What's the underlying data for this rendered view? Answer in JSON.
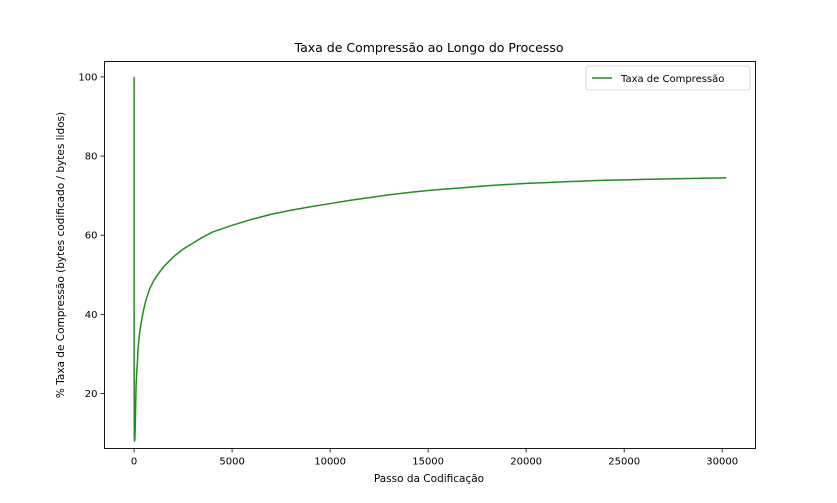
{
  "chart_data": {
    "type": "line",
    "title": "Taxa de Compressão ao Longo do Processo",
    "xlabel": "Passo da Codificação",
    "ylabel": "% Taxa de Compressão (bytes codificado / bytes lidos)",
    "xlim": [
      -1510,
      31700
    ],
    "ylim": [
      6.1,
      103.9
    ],
    "xticks": [
      0,
      5000,
      10000,
      15000,
      20000,
      25000,
      30000
    ],
    "xtick_labels": [
      "0",
      "5000",
      "10000",
      "15000",
      "20000",
      "25000",
      "30000"
    ],
    "yticks": [
      20,
      40,
      60,
      80,
      100
    ],
    "ytick_labels": [
      "20",
      "40",
      "60",
      "80",
      "100"
    ],
    "grid": false,
    "legend_position": "top-right",
    "series": [
      {
        "name": "Taxa de Compressão",
        "color": "#228b22",
        "x": [
          0,
          1,
          3,
          5,
          10,
          20,
          40,
          60,
          80,
          100,
          130,
          170,
          200,
          250,
          300,
          400,
          500,
          600,
          700,
          800,
          1000,
          1200,
          1500,
          1800,
          2000,
          2500,
          3000,
          3500,
          4000,
          5000,
          6000,
          7000,
          8000,
          9000,
          10000,
          11000,
          12000,
          13000,
          14000,
          15000,
          16000,
          17000,
          18000,
          19000,
          20000,
          21000,
          22000,
          23000,
          24000,
          25000,
          26000,
          27000,
          28000,
          29000,
          30200
        ],
        "y": [
          100,
          55,
          30,
          18,
          10,
          8,
          8.5,
          12,
          17,
          22,
          25,
          28,
          31,
          34,
          36,
          39,
          41.5,
          43.5,
          45,
          46.5,
          48.5,
          50,
          52,
          53.5,
          54.5,
          56.5,
          58,
          59.5,
          60.8,
          62.5,
          64,
          65.3,
          66.3,
          67.2,
          68,
          68.8,
          69.5,
          70.2,
          70.8,
          71.3,
          71.7,
          72.1,
          72.5,
          72.8,
          73.1,
          73.3,
          73.5,
          73.7,
          73.9,
          74,
          74.1,
          74.2,
          74.3,
          74.4,
          74.5
        ]
      }
    ]
  }
}
